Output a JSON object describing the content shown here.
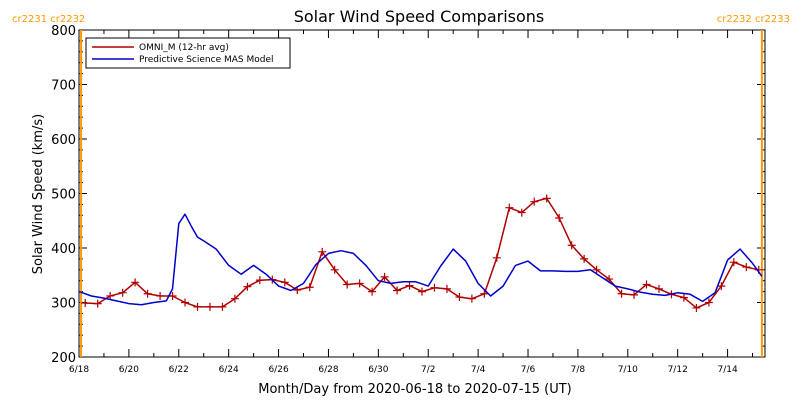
{
  "chart_data": {
    "type": "line",
    "title": "Solar Wind Speed Comparisons",
    "xlabel": "Month/Day from 2020-06-18 to 2020-07-15 (UT)",
    "ylabel": "Solar Wind Speed (km/s)",
    "ylim": [
      200,
      800
    ],
    "yticks": [
      200,
      300,
      400,
      500,
      600,
      700,
      800
    ],
    "xlim": [
      "2020-06-18T00:00",
      "2020-07-15T12:00"
    ],
    "xticks": [
      {
        "date": "2020-06-18",
        "label": "6/18"
      },
      {
        "date": "2020-06-20",
        "label": "6/20"
      },
      {
        "date": "2020-06-22",
        "label": "6/22"
      },
      {
        "date": "2020-06-24",
        "label": "6/24"
      },
      {
        "date": "2020-06-26",
        "label": "6/26"
      },
      {
        "date": "2020-06-28",
        "label": "6/28"
      },
      {
        "date": "2020-06-30",
        "label": "6/30"
      },
      {
        "date": "2020-07-02",
        "label": "7/2"
      },
      {
        "date": "2020-07-04",
        "label": "7/4"
      },
      {
        "date": "2020-07-06",
        "label": "7/6"
      },
      {
        "date": "2020-07-08",
        "label": "7/8"
      },
      {
        "date": "2020-07-10",
        "label": "7/10"
      },
      {
        "date": "2020-07-12",
        "label": "7/12"
      },
      {
        "date": "2020-07-14",
        "label": "7/14"
      }
    ],
    "legend_position": "top-left",
    "series": [
      {
        "name": "OMNI_M (12-hr avg)",
        "color": "#b00000",
        "marker": "plus",
        "x": [
          "2020-06-18T06:00",
          "2020-06-18T18:00",
          "2020-06-19T06:00",
          "2020-06-19T18:00",
          "2020-06-20T06:00",
          "2020-06-20T18:00",
          "2020-06-21T06:00",
          "2020-06-21T18:00",
          "2020-06-22T06:00",
          "2020-06-22T18:00",
          "2020-06-23T06:00",
          "2020-06-23T18:00",
          "2020-06-24T06:00",
          "2020-06-24T18:00",
          "2020-06-25T06:00",
          "2020-06-25T18:00",
          "2020-06-26T06:00",
          "2020-06-26T18:00",
          "2020-06-27T06:00",
          "2020-06-27T18:00",
          "2020-06-28T06:00",
          "2020-06-28T18:00",
          "2020-06-29T06:00",
          "2020-06-29T18:00",
          "2020-06-30T06:00",
          "2020-06-30T18:00",
          "2020-07-01T06:00",
          "2020-07-01T18:00",
          "2020-07-02T06:00",
          "2020-07-02T18:00",
          "2020-07-03T06:00",
          "2020-07-03T18:00",
          "2020-07-04T06:00",
          "2020-07-04T18:00",
          "2020-07-05T06:00",
          "2020-07-05T18:00",
          "2020-07-06T06:00",
          "2020-07-06T18:00",
          "2020-07-07T06:00",
          "2020-07-07T18:00",
          "2020-07-08T06:00",
          "2020-07-08T18:00",
          "2020-07-09T06:00",
          "2020-07-09T18:00",
          "2020-07-10T06:00",
          "2020-07-10T18:00",
          "2020-07-11T06:00",
          "2020-07-11T18:00",
          "2020-07-12T06:00",
          "2020-07-12T18:00",
          "2020-07-13T06:00",
          "2020-07-13T18:00",
          "2020-07-14T06:00",
          "2020-07-14T18:00",
          "2020-07-15T06:00"
        ],
        "values": [
          299,
          298,
          312,
          318,
          337,
          316,
          312,
          312,
          300,
          292,
          292,
          292,
          307,
          329,
          341,
          342,
          337,
          323,
          328,
          393,
          360,
          333,
          335,
          320,
          347,
          322,
          331,
          320,
          327,
          325,
          310,
          307,
          316,
          382,
          474,
          465,
          485,
          491,
          455,
          405,
          380,
          360,
          343,
          316,
          314,
          333,
          325,
          315,
          309,
          290,
          300,
          330,
          374,
          365,
          360
        ]
      },
      {
        "name": "Predictive Science MAS Model",
        "color": "#0000cc",
        "marker": "none",
        "x": [
          "2020-06-18T00:00",
          "2020-06-18T12:00",
          "2020-06-19T00:00",
          "2020-06-19T12:00",
          "2020-06-20T00:00",
          "2020-06-20T12:00",
          "2020-06-21T00:00",
          "2020-06-21T12:00",
          "2020-06-21T18:00",
          "2020-06-22T00:00",
          "2020-06-22T06:00",
          "2020-06-22T12:00",
          "2020-06-22T18:00",
          "2020-06-23T00:00",
          "2020-06-23T12:00",
          "2020-06-24T00:00",
          "2020-06-24T12:00",
          "2020-06-25T00:00",
          "2020-06-25T12:00",
          "2020-06-26T00:00",
          "2020-06-26T12:00",
          "2020-06-27T00:00",
          "2020-06-27T12:00",
          "2020-06-28T00:00",
          "2020-06-28T12:00",
          "2020-06-29T00:00",
          "2020-06-29T12:00",
          "2020-06-30T00:00",
          "2020-06-30T12:00",
          "2020-07-01T00:00",
          "2020-07-01T12:00",
          "2020-07-02T00:00",
          "2020-07-02T12:00",
          "2020-07-03T00:00",
          "2020-07-03T12:00",
          "2020-07-04T00:00",
          "2020-07-04T12:00",
          "2020-07-05T00:00",
          "2020-07-05T12:00",
          "2020-07-06T00:00",
          "2020-07-06T12:00",
          "2020-07-07T00:00",
          "2020-07-07T12:00",
          "2020-07-08T00:00",
          "2020-07-08T12:00",
          "2020-07-09T00:00",
          "2020-07-09T12:00",
          "2020-07-10T00:00",
          "2020-07-10T12:00",
          "2020-07-11T00:00",
          "2020-07-11T12:00",
          "2020-07-12T00:00",
          "2020-07-12T12:00",
          "2020-07-13T00:00",
          "2020-07-13T12:00",
          "2020-07-14T00:00",
          "2020-07-14T12:00",
          "2020-07-15T00:00",
          "2020-07-15T09:00"
        ],
        "values": [
          320,
          312,
          308,
          303,
          298,
          296,
          300,
          303,
          325,
          445,
          462,
          440,
          420,
          413,
          398,
          368,
          352,
          368,
          352,
          330,
          322,
          335,
          370,
          390,
          395,
          390,
          368,
          340,
          335,
          338,
          338,
          330,
          367,
          398,
          376,
          335,
          312,
          330,
          368,
          376,
          358,
          358,
          357,
          357,
          360,
          345,
          330,
          325,
          319,
          315,
          313,
          318,
          315,
          302,
          318,
          378,
          398,
          372,
          348
        ]
      }
    ],
    "annotations": {
      "left_rotation": "cr2231 cr2232",
      "right_rotation": "cr2232 cr2233",
      "rotation_boundaries": [
        "2020-06-18T02:00",
        "2020-07-15T09:00"
      ],
      "boundary_color": "#ff9900"
    }
  }
}
